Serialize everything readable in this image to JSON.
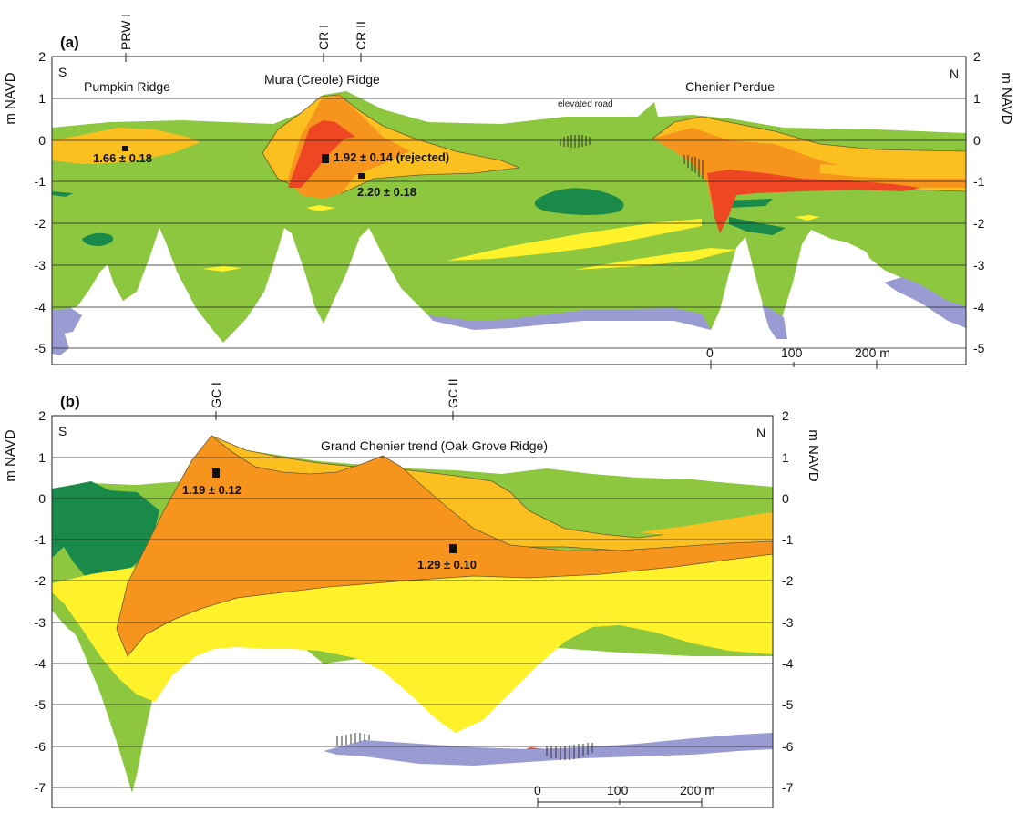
{
  "panel_a": {
    "label": "(a)",
    "y_axis_title": "m NAVD",
    "y_ticks": [
      "2",
      "1",
      "0",
      "-1",
      "-2",
      "-3",
      "-4",
      "-5"
    ],
    "cores": [
      "PRW I",
      "CR I",
      "CR II"
    ],
    "left_end": "S",
    "right_end": "N",
    "regions": [
      "Pumpkin Ridge",
      "Mura (Creole) Ridge",
      "Chenier Perdue"
    ],
    "note": "elevated road",
    "ages": [
      "1.66 ± 0.18",
      "1.92 ± 0.14 (rejected)",
      "2.20 ± 0.18"
    ],
    "scale": [
      "0",
      "100",
      "200 m"
    ]
  },
  "panel_b": {
    "label": "(b)",
    "y_axis_title": "m NAVD",
    "y_ticks": [
      "2",
      "1",
      "0",
      "-1",
      "-2",
      "-3",
      "-4",
      "-5",
      "-6",
      "-7"
    ],
    "cores": [
      "GC I",
      "GC II"
    ],
    "left_end": "S",
    "right_end": "N",
    "regions": [
      "Grand Chenier trend (Oak Grove Ridge)"
    ],
    "ages": [
      "1.19 ± 0.12",
      "1.29 ± 0.10"
    ],
    "scale": [
      "0",
      "100",
      "200 m"
    ]
  },
  "colors": {
    "mud_green": "#8dc63f",
    "dark_green": "#1a8a4a",
    "light_orange": "#fbbf1f",
    "orange": "#f7941d",
    "red": "#ef4623",
    "yellow": "#fff22b",
    "purple": "#9b9bd3"
  }
}
